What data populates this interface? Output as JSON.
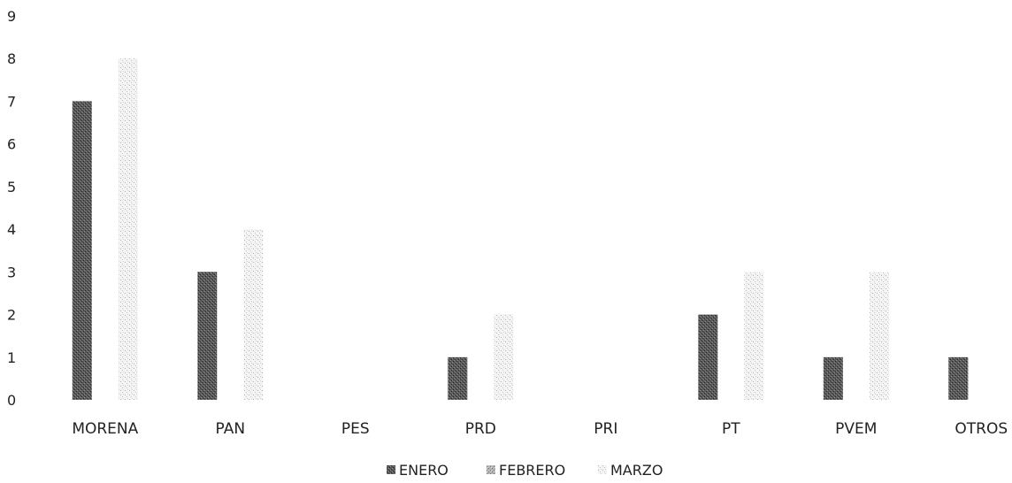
{
  "chart_data": {
    "type": "bar",
    "categories": [
      "MORENA",
      "PAN",
      "PES",
      "PRD",
      "PRI",
      "PT",
      "PVEM",
      "OTROS"
    ],
    "series": [
      {
        "name": "ENERO",
        "values": [
          7,
          3,
          0,
          1,
          0,
          2,
          1,
          1
        ],
        "color": "#444444"
      },
      {
        "name": "FEBRERO",
        "values": [
          0,
          0,
          0,
          0,
          0,
          0,
          0,
          0
        ],
        "color": "#8a8a8a"
      },
      {
        "name": "MARZO",
        "values": [
          8,
          4,
          0,
          2,
          0,
          3,
          3,
          0
        ],
        "color": "#d4d4d4"
      }
    ],
    "y_ticks": [
      "0",
      "1",
      "2",
      "3",
      "4",
      "5",
      "6",
      "7",
      "8",
      "9"
    ],
    "ylim": [
      0,
      9
    ],
    "title": "",
    "xlabel": "",
    "ylabel": "",
    "grid": false,
    "legend_position": "bottom"
  }
}
